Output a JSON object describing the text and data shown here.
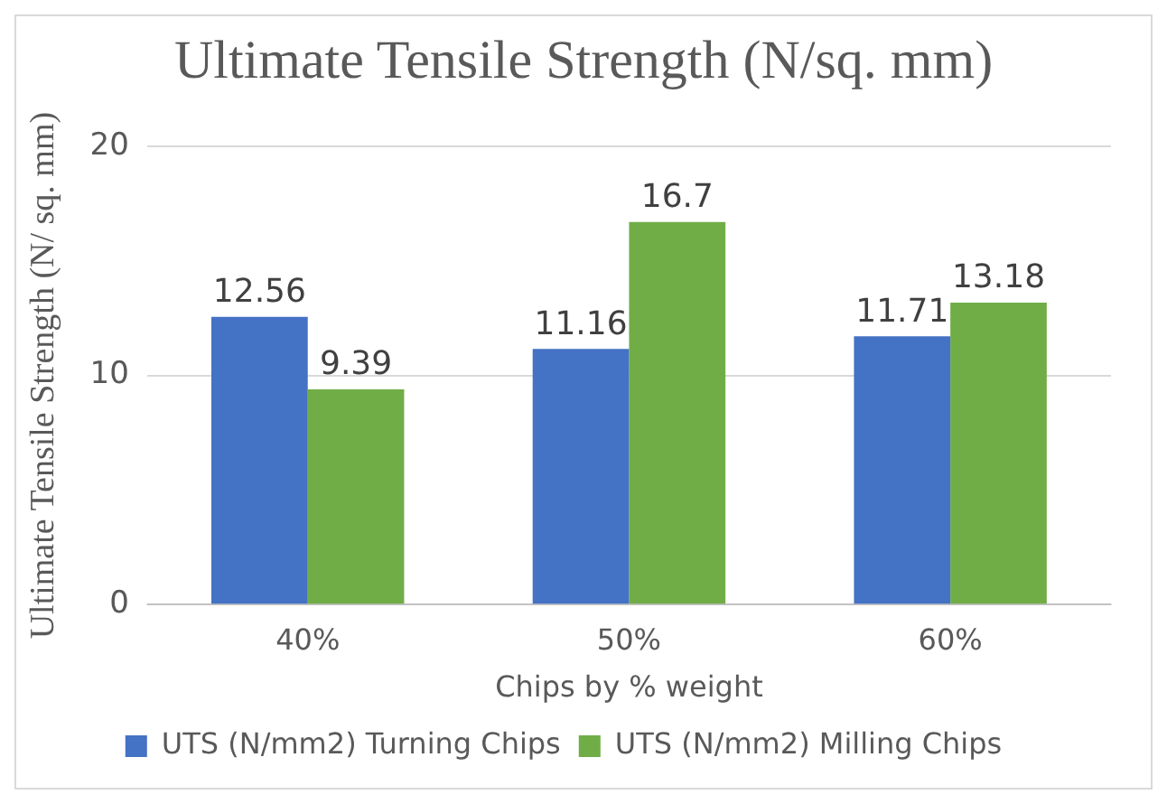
{
  "chart_data": {
    "type": "bar",
    "title": "Ultimate Tensile Strength (N/sq. mm)",
    "xlabel": "Chips by % weight",
    "ylabel": "Ultimate Tensile Strength (N/ sq. mm)",
    "categories": [
      "40%",
      "50%",
      "60%"
    ],
    "series": [
      {
        "name": "UTS (N/mm2) Turning Chips",
        "color": "#4472c4",
        "values": [
          12.56,
          11.16,
          11.71
        ]
      },
      {
        "name": "UTS (N/mm2) Milling Chips",
        "color": "#70ad47",
        "values": [
          9.39,
          16.7,
          13.18
        ]
      }
    ],
    "ylim": [
      0,
      20
    ],
    "yticks": [
      0,
      10,
      20
    ],
    "grid": "y",
    "legend": "bottom",
    "data_labels": true
  }
}
